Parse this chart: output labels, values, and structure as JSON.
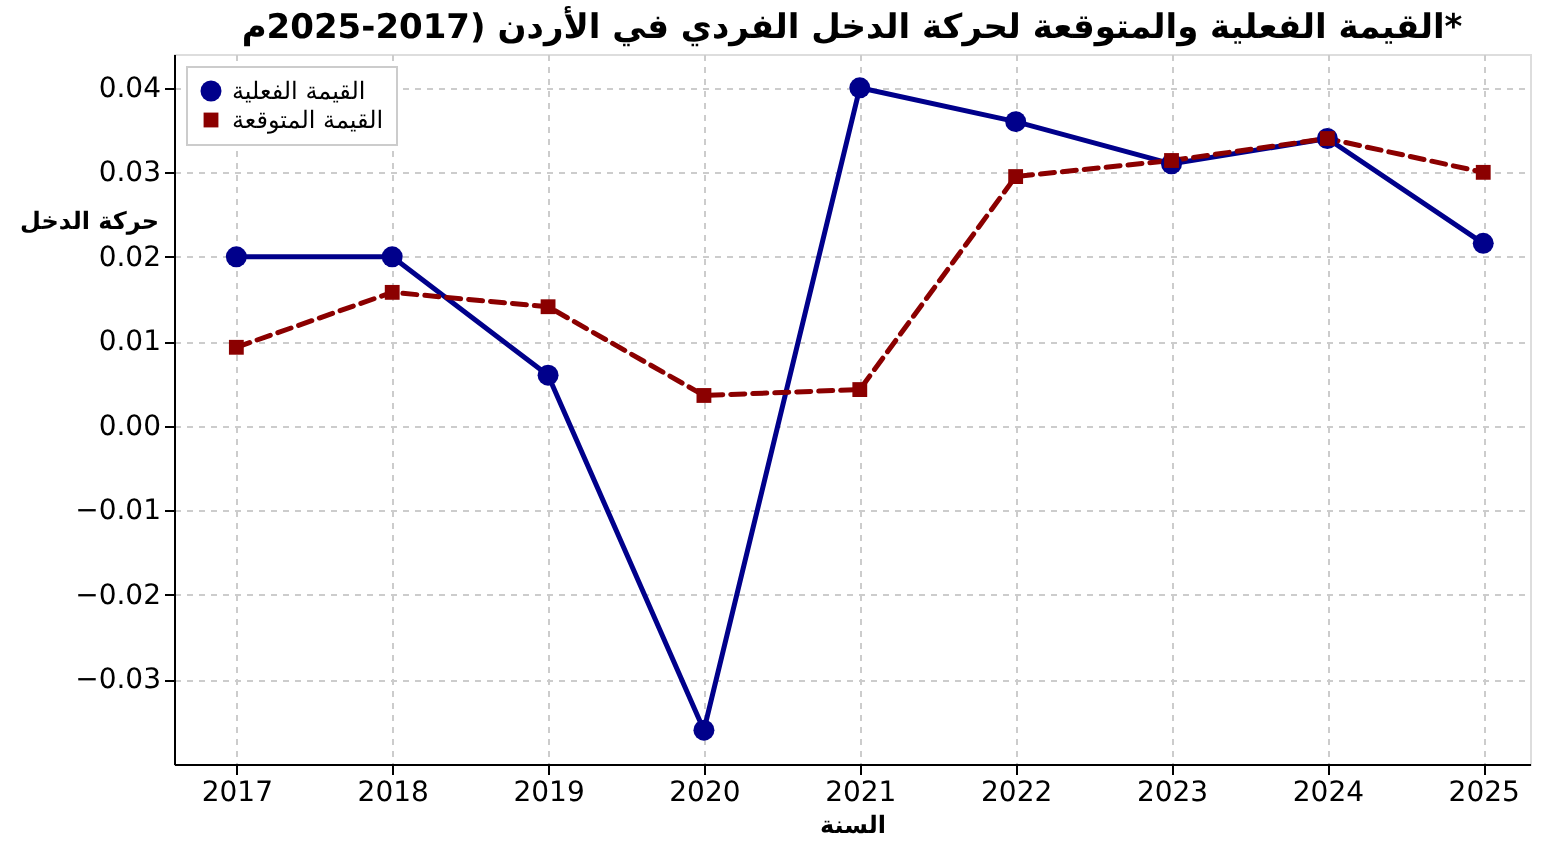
{
  "chart_data": {
    "type": "line",
    "title": "القيمة الفعلية والمتوقعة لحركة الدخل الفردي في الأردن (2017-2025م*",
    "xlabel": "السنة",
    "ylabel": "حركة  الدخل",
    "x": [
      2017,
      2018,
      2019,
      2020,
      2021,
      2022,
      2023,
      2024,
      2025
    ],
    "series": [
      {
        "name": "القيمة الفعلية",
        "color": "#00008b",
        "marker": "circle",
        "line_style": "solid",
        "values": [
          0.02,
          0.02,
          0.006,
          -0.036,
          0.04,
          0.036,
          0.031,
          0.034,
          0.0216
        ]
      },
      {
        "name": "القيمة المتوقعة",
        "color": "#8b0000",
        "marker": "square",
        "line_style": "dashed",
        "values": [
          0.0093,
          0.0158,
          0.0141,
          0.0036,
          0.0043,
          0.0295,
          0.0314,
          0.034,
          0.03
        ]
      }
    ],
    "xlim": [
      2016.6,
      2025.3
    ],
    "xticks": [
      2017,
      2018,
      2019,
      2020,
      2021,
      2022,
      2023,
      2024,
      2025
    ],
    "ylim": [
      -0.04,
      0.044
    ],
    "yticks": [
      {
        "value": -0.03,
        "label": "−0.03"
      },
      {
        "value": -0.02,
        "label": "−0.02"
      },
      {
        "value": -0.01,
        "label": "−0.01"
      },
      {
        "value": 0,
        "label": "0.00"
      },
      {
        "value": 0.01,
        "label": "0.01"
      },
      {
        "value": 0.02,
        "label": "0.02"
      },
      {
        "value": 0.03,
        "label": "0.03"
      },
      {
        "value": 0.04,
        "label": "0.04"
      }
    ],
    "grid": true,
    "legend": "top left"
  }
}
